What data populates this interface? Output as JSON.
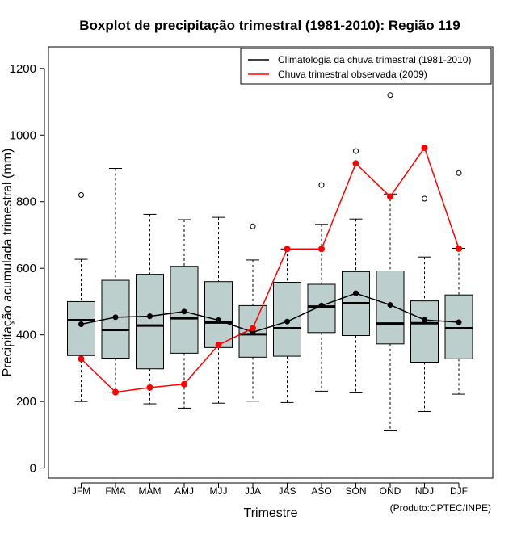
{
  "chart_data": {
    "type": "boxplot",
    "title": "Boxplot de precipitação trimestral (1981-2010): Região 119",
    "xlabel": "Trimestre",
    "ylabel": "Precipitação acumulada trimestral (mm)",
    "credit": "(Produto:CPTEC/INPE)",
    "ylim": [
      -30,
      1265
    ],
    "yticks": [
      0,
      200,
      400,
      600,
      800,
      1000,
      1200
    ],
    "categories": [
      "JFM",
      "FMA",
      "MAM",
      "AMJ",
      "MJJ",
      "JJA",
      "JAS",
      "ASO",
      "SON",
      "OND",
      "NDJ",
      "DJF"
    ],
    "boxes": [
      {
        "whisker_low": 200,
        "q1": 338,
        "median": 444,
        "q3": 500,
        "whisker_high": 627,
        "outliers": [
          820
        ]
      },
      {
        "whisker_low": 228,
        "q1": 330,
        "median": 415,
        "q3": 564,
        "whisker_high": 900,
        "outliers": []
      },
      {
        "whisker_low": 193,
        "q1": 298,
        "median": 428,
        "q3": 582,
        "whisker_high": 762,
        "outliers": []
      },
      {
        "whisker_low": 180,
        "q1": 345,
        "median": 450,
        "q3": 606,
        "whisker_high": 746,
        "outliers": []
      },
      {
        "whisker_low": 195,
        "q1": 362,
        "median": 437,
        "q3": 560,
        "whisker_high": 753,
        "outliers": []
      },
      {
        "whisker_low": 201,
        "q1": 333,
        "median": 402,
        "q3": 488,
        "whisker_high": 625,
        "outliers": [
          726
        ]
      },
      {
        "whisker_low": 197,
        "q1": 336,
        "median": 420,
        "q3": 558,
        "whisker_high": 658,
        "outliers": []
      },
      {
        "whisker_low": 231,
        "q1": 407,
        "median": 485,
        "q3": 552,
        "whisker_high": 732,
        "outliers": [
          850
        ]
      },
      {
        "whisker_low": 226,
        "q1": 398,
        "median": 495,
        "q3": 590,
        "whisker_high": 748,
        "outliers": [
          952
        ]
      },
      {
        "whisker_low": 112,
        "q1": 373,
        "median": 434,
        "q3": 592,
        "whisker_high": 823,
        "outliers": [
          1120
        ]
      },
      {
        "whisker_low": 170,
        "q1": 318,
        "median": 435,
        "q3": 502,
        "whisker_high": 634,
        "outliers": [
          809
        ]
      },
      {
        "whisker_low": 222,
        "q1": 328,
        "median": 420,
        "q3": 520,
        "whisker_high": 660,
        "outliers": [
          886
        ]
      }
    ],
    "series": [
      {
        "name": "Climatologia da chuva trimestral (1981-2010)",
        "color": "#000000",
        "values": [
          432,
          453,
          456,
          470,
          444,
          408,
          440,
          488,
          525,
          490,
          445,
          438
        ]
      },
      {
        "name": "Chuva trimestral observada (2009)",
        "color": "#ff0000",
        "values": [
          328,
          228,
          242,
          252,
          370,
          420,
          658,
          658,
          915,
          815,
          962,
          659
        ]
      }
    ],
    "box_fill": "#bccfcd",
    "legend_position": "top-right"
  }
}
